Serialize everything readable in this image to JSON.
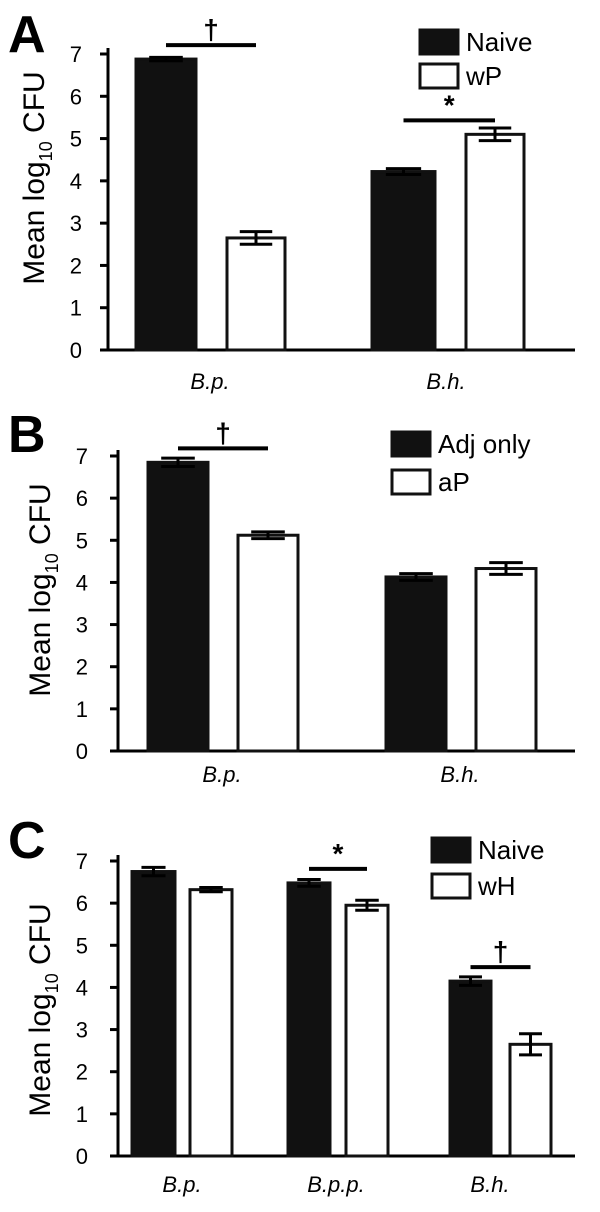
{
  "chart_data": [
    {
      "panel": "A",
      "type": "bar",
      "ylabel": "Mean log10 CFU",
      "ylim": [
        0,
        7
      ],
      "yticks": [
        0,
        1,
        2,
        3,
        4,
        5,
        6,
        7
      ],
      "categories": [
        "B.p.",
        "B.h."
      ],
      "series": [
        {
          "name": "Naive",
          "fill": "#111111",
          "values": [
            6.88,
            4.22
          ],
          "errors": [
            0.04,
            0.07
          ]
        },
        {
          "name": "wP",
          "fill": "#ffffff",
          "values": [
            2.65,
            5.1
          ],
          "errors": [
            0.15,
            0.15
          ]
        }
      ],
      "significance": [
        {
          "category": 0,
          "symbol": "†"
        },
        {
          "category": 1,
          "symbol": "*"
        }
      ],
      "legend": "top-right"
    },
    {
      "panel": "B",
      "type": "bar",
      "ylabel": "Mean log10 CFU",
      "ylim": [
        0,
        7
      ],
      "yticks": [
        0,
        1,
        2,
        3,
        4,
        5,
        6,
        7
      ],
      "categories": [
        "B.p.",
        "B.h."
      ],
      "series": [
        {
          "name": "Adj only",
          "fill": "#111111",
          "values": [
            6.85,
            4.13
          ],
          "errors": [
            0.1,
            0.08
          ]
        },
        {
          "name": "aP",
          "fill": "#ffffff",
          "values": [
            5.12,
            4.33
          ],
          "errors": [
            0.08,
            0.14
          ]
        }
      ],
      "significance": [
        {
          "category": 0,
          "symbol": "†"
        }
      ],
      "legend": "top-right"
    },
    {
      "panel": "C",
      "type": "bar",
      "ylabel": "Mean log10 CFU",
      "ylim": [
        0,
        7
      ],
      "yticks": [
        0,
        1,
        2,
        3,
        4,
        5,
        6,
        7
      ],
      "categories": [
        "B.p.",
        "B.p.p.",
        "B.h."
      ],
      "series": [
        {
          "name": "Naive",
          "fill": "#111111",
          "values": [
            6.75,
            6.48,
            4.15
          ],
          "errors": [
            0.1,
            0.08,
            0.1
          ]
        },
        {
          "name": "wH",
          "fill": "#ffffff",
          "values": [
            6.32,
            5.95,
            2.65
          ],
          "errors": [
            0.05,
            0.12,
            0.25
          ]
        }
      ],
      "significance": [
        {
          "category": 1,
          "symbol": "*"
        },
        {
          "category": 2,
          "symbol": "†"
        }
      ],
      "legend": "top-right"
    }
  ]
}
